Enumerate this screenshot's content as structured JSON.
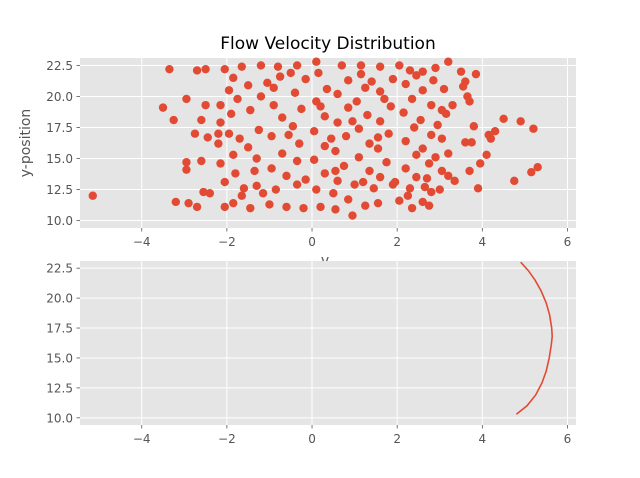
{
  "chart_data": [
    {
      "type": "scatter",
      "title": "Flow Velocity Distribution",
      "xlabel": "v",
      "ylabel": "y-position",
      "xlim": [
        -5.45,
        6.2
      ],
      "ylim": [
        9.4,
        23.1
      ],
      "xticks": [
        -4,
        -2,
        0,
        2,
        4,
        6
      ],
      "yticks": [
        10.0,
        12.5,
        15.0,
        17.5,
        20.0,
        22.5
      ],
      "ytick_labels": [
        "10.0",
        "12.5",
        "15.0",
        "17.5",
        "20.0",
        "22.5"
      ],
      "grid": true,
      "color": "#e24a33",
      "background": "#e5e5e5",
      "series": [
        {
          "points": [
            [
              -5.15,
              12.0
            ],
            [
              -3.35,
              22.2
            ],
            [
              -3.25,
              18.1
            ],
            [
              -3.5,
              19.1
            ],
            [
              -2.95,
              19.8
            ],
            [
              -2.95,
              14.7
            ],
            [
              -2.95,
              14.1
            ],
            [
              -3.2,
              11.5
            ],
            [
              -2.9,
              11.4
            ],
            [
              -2.7,
              11.1
            ],
            [
              -2.6,
              14.8
            ],
            [
              -2.55,
              12.3
            ],
            [
              -2.4,
              12.2
            ],
            [
              -2.45,
              16.7
            ],
            [
              -2.75,
              17.0
            ],
            [
              -2.6,
              18.1
            ],
            [
              -2.5,
              19.3
            ],
            [
              -2.7,
              22.1
            ],
            [
              -2.5,
              22.2
            ],
            [
              -2.2,
              17.0
            ],
            [
              4.75,
              13.2
            ],
            [
              5.15,
              13.9
            ],
            [
              5.3,
              14.3
            ],
            [
              5.2,
              17.4
            ],
            [
              4.9,
              18.0
            ],
            [
              4.5,
              18.2
            ],
            [
              4.3,
              17.2
            ],
            [
              4.2,
              16.6
            ],
            [
              4.15,
              16.9
            ],
            [
              4.1,
              15.3
            ],
            [
              3.95,
              14.6
            ],
            [
              3.9,
              12.6
            ],
            [
              3.7,
              14.0
            ],
            [
              3.6,
              16.3
            ],
            [
              3.75,
              16.3
            ],
            [
              3.8,
              17.6
            ],
            [
              3.7,
              19.6
            ],
            [
              3.65,
              20.0
            ],
            [
              3.55,
              20.8
            ],
            [
              3.6,
              21.2
            ],
            [
              3.85,
              21.8
            ],
            [
              3.5,
              22.0
            ],
            [
              3.2,
              22.8
            ],
            [
              2.9,
              22.3
            ],
            [
              2.6,
              22.0
            ],
            [
              3.35,
              13.2
            ],
            [
              3.2,
              13.6
            ],
            [
              3.0,
              12.5
            ],
            [
              2.8,
              12.3
            ],
            [
              2.6,
              11.5
            ],
            [
              2.75,
              11.2
            ],
            [
              2.35,
              11.0
            ],
            [
              2.05,
              11.6
            ],
            [
              1.55,
              11.4
            ],
            [
              1.25,
              11.2
            ],
            [
              0.95,
              10.4
            ],
            [
              0.55,
              10.9
            ],
            [
              0.2,
              11.1
            ],
            [
              -0.2,
              11.0
            ],
            [
              -0.6,
              11.1
            ],
            [
              -1.0,
              11.3
            ],
            [
              -1.45,
              11.0
            ],
            [
              -1.85,
              11.4
            ],
            [
              -2.05,
              11.1
            ],
            [
              -1.65,
              12.0
            ],
            [
              -1.3,
              12.8
            ],
            [
              -0.85,
              12.5
            ],
            [
              -0.35,
              12.9
            ],
            [
              0.1,
              12.5
            ],
            [
              0.5,
              12.2
            ],
            [
              1.0,
              12.9
            ],
            [
              1.45,
              12.6
            ],
            [
              1.9,
              12.9
            ],
            [
              2.3,
              12.6
            ],
            [
              2.7,
              13.4
            ],
            [
              3.05,
              14.0
            ],
            [
              3.2,
              15.4
            ],
            [
              3.05,
              16.6
            ],
            [
              2.95,
              17.7
            ],
            [
              3.15,
              18.6
            ],
            [
              3.3,
              19.3
            ],
            [
              3.1,
              20.6
            ],
            [
              2.85,
              21.3
            ],
            [
              2.45,
              21.7
            ],
            [
              2.05,
              22.5
            ],
            [
              1.6,
              22.4
            ],
            [
              1.15,
              22.5
            ],
            [
              0.7,
              22.5
            ],
            [
              0.1,
              22.8
            ],
            [
              -0.35,
              22.5
            ],
            [
              -0.8,
              22.4
            ],
            [
              -1.2,
              22.5
            ],
            [
              -1.65,
              22.4
            ],
            [
              -2.05,
              22.2
            ],
            [
              -1.85,
              21.5
            ],
            [
              -1.5,
              20.9
            ],
            [
              -1.95,
              20.5
            ],
            [
              -1.75,
              19.8
            ],
            [
              -2.15,
              19.3
            ],
            [
              -1.9,
              18.6
            ],
            [
              -2.15,
              17.9
            ],
            [
              -1.95,
              17.0
            ],
            [
              -2.2,
              16.2
            ],
            [
              -1.85,
              15.3
            ],
            [
              -2.15,
              14.6
            ],
            [
              -1.8,
              13.8
            ],
            [
              -2.05,
              13.1
            ],
            [
              -1.6,
              12.6
            ],
            [
              -1.35,
              14.0
            ],
            [
              -1.5,
              15.9
            ],
            [
              -1.25,
              17.3
            ],
            [
              -1.45,
              18.9
            ],
            [
              -1.2,
              20.0
            ],
            [
              -1.05,
              21.1
            ],
            [
              -0.75,
              21.6
            ],
            [
              -0.9,
              19.3
            ],
            [
              -0.7,
              18.3
            ],
            [
              -0.95,
              16.8
            ],
            [
              -0.7,
              15.4
            ],
            [
              -0.95,
              14.2
            ],
            [
              -0.6,
              13.6
            ],
            [
              -0.35,
              14.8
            ],
            [
              -0.3,
              16.2
            ],
            [
              -0.45,
              17.6
            ],
            [
              -0.25,
              19.0
            ],
            [
              -0.4,
              20.3
            ],
            [
              -0.15,
              21.4
            ],
            [
              0.15,
              21.9
            ],
            [
              0.35,
              20.6
            ],
            [
              0.1,
              19.6
            ],
            [
              0.3,
              18.4
            ],
            [
              0.05,
              17.2
            ],
            [
              0.3,
              16.0
            ],
            [
              0.05,
              14.9
            ],
            [
              0.3,
              13.8
            ],
            [
              0.6,
              13.2
            ],
            [
              0.75,
              14.4
            ],
            [
              0.55,
              15.6
            ],
            [
              0.8,
              16.8
            ],
            [
              0.6,
              17.9
            ],
            [
              0.85,
              19.1
            ],
            [
              0.6,
              20.2
            ],
            [
              0.85,
              21.3
            ],
            [
              1.15,
              21.8
            ],
            [
              1.25,
              20.7
            ],
            [
              1.05,
              19.6
            ],
            [
              1.3,
              18.5
            ],
            [
              1.1,
              17.4
            ],
            [
              1.35,
              16.2
            ],
            [
              1.1,
              15.1
            ],
            [
              1.35,
              14.0
            ],
            [
              1.6,
              13.5
            ],
            [
              1.75,
              14.7
            ],
            [
              1.55,
              15.8
            ],
            [
              1.8,
              17.0
            ],
            [
              1.6,
              18.0
            ],
            [
              1.85,
              19.2
            ],
            [
              1.6,
              20.4
            ],
            [
              1.9,
              21.4
            ],
            [
              2.2,
              21.0
            ],
            [
              2.35,
              19.8
            ],
            [
              2.15,
              18.7
            ],
            [
              2.4,
              17.5
            ],
            [
              2.2,
              16.4
            ],
            [
              2.45,
              15.3
            ],
            [
              2.2,
              14.2
            ],
            [
              2.45,
              13.5
            ],
            [
              2.75,
              14.6
            ],
            [
              2.6,
              15.8
            ],
            [
              2.8,
              16.9
            ],
            [
              2.55,
              18.1
            ],
            [
              2.8,
              19.3
            ],
            [
              2.6,
              20.5
            ],
            [
              -0.55,
              16.9
            ],
            [
              0.45,
              16.6
            ],
            [
              1.55,
              16.7
            ],
            [
              0.95,
              18.0
            ],
            [
              0.2,
              19.2
            ],
            [
              1.7,
              19.8
            ],
            [
              -0.15,
              13.3
            ],
            [
              1.95,
              13.1
            ],
            [
              2.65,
              12.7
            ],
            [
              -1.15,
              12.2
            ],
            [
              0.85,
              11.7
            ],
            [
              2.3,
              22.1
            ],
            [
              -0.5,
              21.9
            ],
            [
              3.05,
              18.9
            ],
            [
              -1.7,
              16.6
            ],
            [
              2.9,
              15.1
            ],
            [
              -0.9,
              20.7
            ],
            [
              1.4,
              21.2
            ],
            [
              0.55,
              14.0
            ],
            [
              1.2,
              13.1
            ],
            [
              -1.3,
              15.0
            ],
            [
              2.25,
              12.0
            ]
          ]
        }
      ]
    },
    {
      "type": "line",
      "xlim": [
        -5.45,
        6.2
      ],
      "ylim": [
        9.4,
        23.1
      ],
      "xticks": [
        -4,
        -2,
        0,
        2,
        4,
        6
      ],
      "yticks": [
        10.0,
        12.5,
        15.0,
        17.5,
        20.0,
        22.5
      ],
      "ytick_labels": [
        "10.0",
        "12.5",
        "15.0",
        "17.5",
        "20.0",
        "22.5"
      ],
      "grid": true,
      "color": "#e24a33",
      "background": "#e5e5e5",
      "series": [
        {
          "points": [
            [
              4.8,
              10.3
            ],
            [
              5.05,
              11.0
            ],
            [
              5.25,
              11.9
            ],
            [
              5.4,
              12.9
            ],
            [
              5.5,
              13.9
            ],
            [
              5.57,
              15.0
            ],
            [
              5.62,
              16.1
            ],
            [
              5.64,
              16.8
            ],
            [
              5.63,
              17.5
            ],
            [
              5.58,
              18.6
            ],
            [
              5.5,
              19.6
            ],
            [
              5.38,
              20.6
            ],
            [
              5.24,
              21.5
            ],
            [
              5.08,
              22.3
            ],
            [
              4.9,
              23.0
            ]
          ]
        }
      ]
    }
  ]
}
